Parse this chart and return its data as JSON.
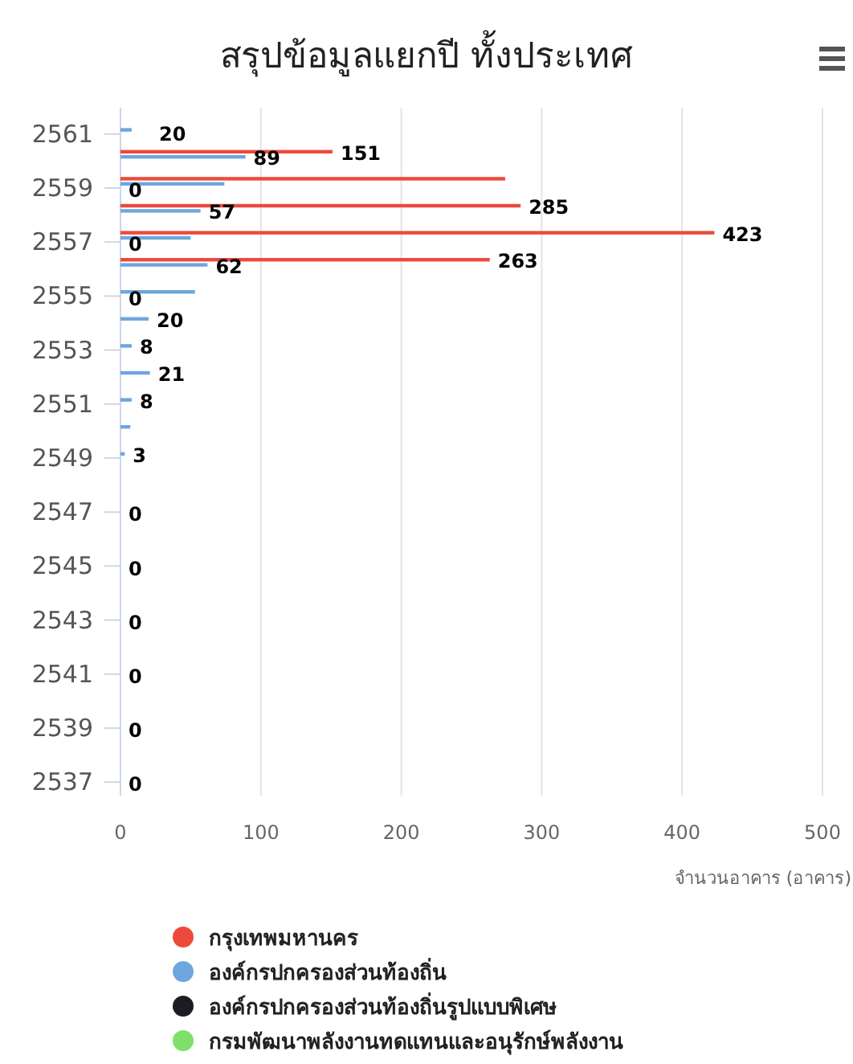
{
  "chart_data": {
    "type": "bar",
    "orientation": "horizontal",
    "title": "สรุปข้อมูลแยกปี ทั้งประเทศ",
    "xlabel": "จำนวนอาคาร (อาคาร)",
    "categories": [
      "2561",
      null,
      "2559",
      null,
      "2557",
      null,
      "2555",
      null,
      "2553",
      null,
      "2551",
      null,
      "2549",
      null,
      "2547",
      null,
      "2545",
      null,
      "2543",
      null,
      "2541",
      null,
      "2539",
      null,
      "2537"
    ],
    "series": [
      {
        "name": "กรุงเทพมหานคร",
        "color": "#ec4a3c",
        "values": [
          null,
          151,
          274,
          285,
          423,
          263,
          null,
          null,
          null,
          null,
          null,
          null,
          null,
          null,
          null,
          null,
          null,
          null,
          null,
          null,
          null,
          null,
          null,
          null,
          null
        ],
        "value_labels": [
          null,
          "151",
          null,
          "285",
          "423",
          "263",
          null,
          null,
          null,
          null,
          null,
          null,
          null,
          null,
          null,
          null,
          null,
          null,
          null,
          null,
          null,
          null,
          null,
          null,
          null
        ]
      },
      {
        "name": "องค์กรปกครองส่วนท้องถิ่น",
        "color": "#6ea6de",
        "values": [
          8,
          89,
          74,
          57,
          50,
          62,
          53,
          20,
          8,
          21,
          8,
          7,
          3,
          null,
          null,
          null,
          null,
          null,
          null,
          null,
          null,
          null,
          null,
          null,
          null
        ],
        "value_labels": [
          null,
          "89",
          null,
          "57",
          null,
          "62",
          null,
          "20",
          "8",
          "21",
          "8",
          null,
          "3",
          null,
          null,
          null,
          null,
          null,
          null,
          null,
          null,
          null,
          null,
          null,
          null
        ]
      },
      {
        "name": "องค์กรปกครองส่วนท้องถิ่นรูปแบบพิเศษ",
        "color": "#1c1c24",
        "values": [
          null,
          null,
          0,
          null,
          0,
          null,
          0,
          null,
          null,
          null,
          null,
          null,
          null,
          null,
          0,
          null,
          0,
          null,
          0,
          null,
          0,
          null,
          0,
          null,
          0
        ],
        "value_labels": [
          null,
          null,
          "0",
          null,
          "0",
          null,
          "0",
          null,
          null,
          null,
          null,
          null,
          null,
          null,
          "0",
          null,
          "0",
          null,
          "0",
          null,
          "0",
          null,
          "0",
          null,
          "0"
        ]
      },
      {
        "name": "กรมพัฒนาพลังงานทดแทนและอนุรักษ์พลังงาน",
        "color": "#7ee06a",
        "values": [
          null,
          null,
          null,
          null,
          null,
          null,
          null,
          null,
          null,
          null,
          null,
          null,
          null,
          null,
          null,
          null,
          null,
          null,
          null,
          null,
          null,
          null,
          null,
          null,
          null
        ]
      }
    ],
    "annotations": [
      "20"
    ],
    "xlim": [
      0,
      500
    ],
    "xticks": [
      0,
      100,
      200,
      300,
      400,
      500
    ],
    "grid": "x",
    "legend": "bottom"
  }
}
